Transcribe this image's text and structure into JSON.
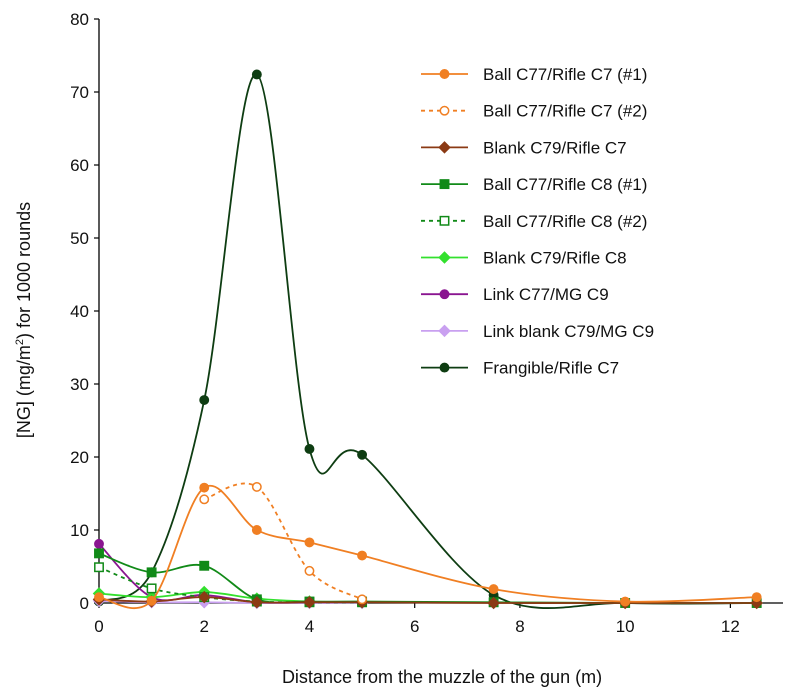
{
  "chart_data": {
    "type": "line",
    "title": "",
    "xlabel": "Distance from the muzzle of the gun (m)",
    "ylabel_parts": [
      "[NG] (mg/m",
      "2",
      ") for 1000 rounds"
    ],
    "xlim": [
      0,
      13
    ],
    "ylim": [
      0,
      80
    ],
    "xticks": [
      0,
      2,
      4,
      6,
      8,
      10,
      12
    ],
    "yticks": [
      0,
      10,
      20,
      30,
      40,
      50,
      60,
      70,
      80
    ],
    "grid": false,
    "smooth": true,
    "legend_position": "top-right",
    "series": [
      {
        "name": "Ball C77/Rifle C7 (#1)",
        "color": "#f07f23",
        "marker": "circle",
        "filled": true,
        "dash": "solid",
        "x": [
          0,
          1,
          2,
          3,
          4,
          5,
          7.5,
          10,
          12.5
        ],
        "y": [
          0.8,
          0.3,
          15.8,
          10.0,
          8.3,
          6.5,
          1.9,
          0.2,
          0.8
        ]
      },
      {
        "name": "Ball C77/Rifle C7 (#2)",
        "color": "#f07f23",
        "marker": "circle",
        "filled": false,
        "dash": "dotted",
        "x": [
          2,
          3,
          4,
          5
        ],
        "y": [
          14.2,
          15.9,
          4.4,
          0.5
        ]
      },
      {
        "name": "Blank C79/Rifle C7",
        "color": "#8b3a14",
        "marker": "diamond",
        "filled": true,
        "dash": "solid",
        "x": [
          0,
          1,
          2,
          3,
          4,
          5,
          7.5,
          10,
          12.5
        ],
        "y": [
          0.5,
          0.2,
          0.8,
          0.1,
          0.1,
          0.1,
          0.0,
          0.0,
          0.0
        ]
      },
      {
        "name": "Ball C77/Rifle C8 (#1)",
        "color": "#118a18",
        "marker": "square",
        "filled": true,
        "dash": "solid",
        "x": [
          0,
          1,
          2,
          3,
          4,
          5,
          7.5,
          10,
          12.5
        ],
        "y": [
          6.8,
          4.2,
          5.1,
          0.5,
          0.2,
          0.2,
          0.1,
          0.0,
          0.0
        ]
      },
      {
        "name": "Ball C77/Rifle C8 (#2)",
        "color": "#118a18",
        "marker": "square",
        "filled": false,
        "dash": "dotted",
        "x": [
          0,
          1,
          2,
          3,
          4,
          5
        ],
        "y": [
          4.9,
          2.0,
          0.8,
          0.2,
          0.1,
          0.1
        ]
      },
      {
        "name": "Blank C79/Rifle C8",
        "color": "#33e02e",
        "marker": "diamond",
        "filled": true,
        "dash": "solid",
        "x": [
          0,
          1,
          2,
          3,
          4,
          5
        ],
        "y": [
          1.3,
          0.8,
          1.5,
          0.6,
          0.2,
          0.1
        ]
      },
      {
        "name": "Link C77/MG C9",
        "color": "#8a1590",
        "marker": "circle",
        "filled": true,
        "dash": "solid",
        "x": [
          0,
          1,
          2,
          3,
          4,
          5
        ],
        "y": [
          8.1,
          0.8,
          1.1,
          0.1,
          0.1,
          0.1
        ]
      },
      {
        "name": "Link blank C79/MG C9",
        "color": "#c9a0f0",
        "marker": "diamond",
        "filled": true,
        "dash": "solid",
        "x": [
          0,
          1,
          2,
          3,
          4,
          5
        ],
        "y": [
          0.3,
          0.1,
          0.1,
          0.0,
          0.0,
          0.0
        ]
      },
      {
        "name": "Frangible/Rifle C7",
        "color": "#0e3d12",
        "marker": "circle",
        "filled": true,
        "dash": "solid",
        "x": [
          0,
          1,
          2,
          3,
          4,
          5,
          7.5,
          10,
          12.5
        ],
        "y": [
          0.2,
          4.2,
          27.8,
          72.4,
          21.1,
          20.3,
          1.1,
          0.0,
          0.0
        ]
      }
    ]
  }
}
